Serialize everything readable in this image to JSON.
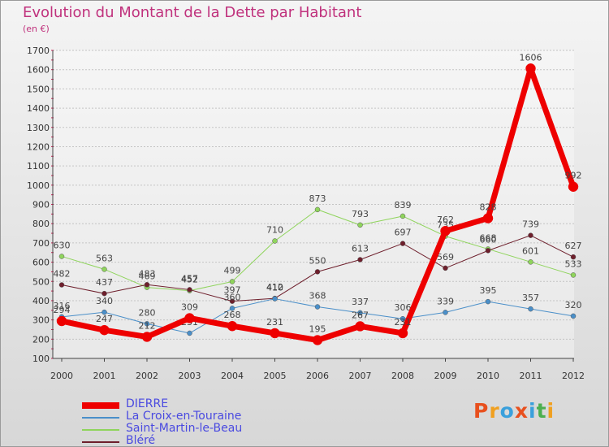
{
  "title": "Evolution du Montant de la Dette par Habitant",
  "subtitle": "(en €)",
  "logo": {
    "text": "Proxiti",
    "colors": [
      "#e8501e",
      "#f0a020",
      "#3aa0dc",
      "#e8501e",
      "#3aa0dc",
      "#4caf50",
      "#f0a020"
    ]
  },
  "chart_data": {
    "type": "line",
    "title": "Evolution du Montant de la Dette par Habitant",
    "ylabel": "(en €)",
    "ylim": [
      100,
      1700
    ],
    "yticks": [
      100,
      200,
      300,
      400,
      500,
      600,
      700,
      800,
      900,
      1000,
      1100,
      1200,
      1300,
      1400,
      1500,
      1600,
      1700
    ],
    "x": [
      "2000",
      "2001",
      "2002",
      "2003",
      "2004",
      "2005",
      "2006",
      "2007",
      "2008",
      "2009",
      "2010",
      "2011",
      "2012"
    ],
    "grid": "horizontal",
    "legend_position": "bottom-left",
    "series": [
      {
        "name": "Saint-Martin-le-Beau",
        "color": "#8fd45c",
        "width": 1,
        "marker": 3,
        "values": [
          630,
          563,
          469,
          452,
          499,
          710,
          873,
          793,
          839,
          735,
          668,
          601,
          533
        ],
        "labels": [
          "630",
          "563",
          "469",
          "452",
          "499",
          "710",
          "873",
          "793",
          "839",
          "735",
          "668",
          "601",
          "533"
        ]
      },
      {
        "name": "Bléré",
        "color": "#6e1f2c",
        "width": 1,
        "marker": 3,
        "values": [
          482,
          437,
          483,
          457,
          397,
          412,
          550,
          613,
          697,
          569,
          660,
          739,
          627
        ],
        "labels": [
          "482",
          "437",
          "483",
          "457",
          "397",
          "412",
          "550",
          "613",
          "697",
          "569",
          "660",
          "739",
          "627"
        ]
      },
      {
        "name": "La Croix-en-Touraine",
        "color": "#4a8fc9",
        "width": 1,
        "marker": 3,
        "values": [
          316,
          340,
          280,
          231,
          360,
          410,
          368,
          337,
          306,
          339,
          395,
          357,
          320
        ],
        "labels": [
          "316",
          "340",
          "280",
          "231",
          "360",
          "410",
          "368",
          "337",
          "306",
          "339",
          "395",
          "357",
          "320"
        ]
      },
      {
        "name": "DIERRE",
        "color": "#ee0000",
        "width": 7,
        "marker": 6,
        "values": [
          294,
          247,
          212,
          309,
          268,
          231,
          195,
          267,
          231,
          762,
          828,
          1606,
          992
        ],
        "labels": [
          "294",
          "247",
          "212",
          "309",
          "268",
          "231",
          "195",
          "267",
          "231",
          "762",
          "828",
          "1606",
          "992"
        ]
      }
    ],
    "legend_order": [
      "DIERRE",
      "La Croix-en-Touraine",
      "Saint-Martin-le-Beau",
      "Bléré"
    ]
  }
}
